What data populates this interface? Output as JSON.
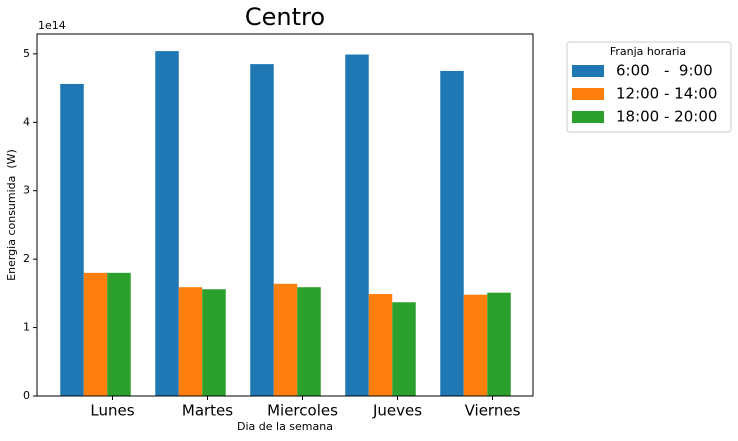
{
  "chart_data": {
    "type": "bar",
    "title": "Centro",
    "x_label": "Dia de la semana",
    "y_label": "Energia consumida  (W)",
    "y_offset_label": "1e14",
    "legend_title": "Franja horaria",
    "categories": [
      "Lunes",
      "Martes",
      "Miercoles",
      "Jueves",
      "Viernes"
    ],
    "series": [
      {
        "name": "6:00   -  9:00",
        "color": "#1f77b4",
        "values": [
          4.56,
          5.04,
          4.85,
          4.99,
          4.75
        ]
      },
      {
        "name": "12:00 - 14:00",
        "color": "#ff7f0e",
        "values": [
          1.8,
          1.59,
          1.64,
          1.49,
          1.48
        ]
      },
      {
        "name": "18:00 - 20:00",
        "color": "#2ca02c",
        "values": [
          1.8,
          1.56,
          1.59,
          1.37,
          1.51
        ]
      }
    ],
    "ylim": [
      0,
      5.29
    ],
    "yticks": [
      0,
      1,
      2,
      3,
      4,
      5
    ],
    "grid": false
  }
}
